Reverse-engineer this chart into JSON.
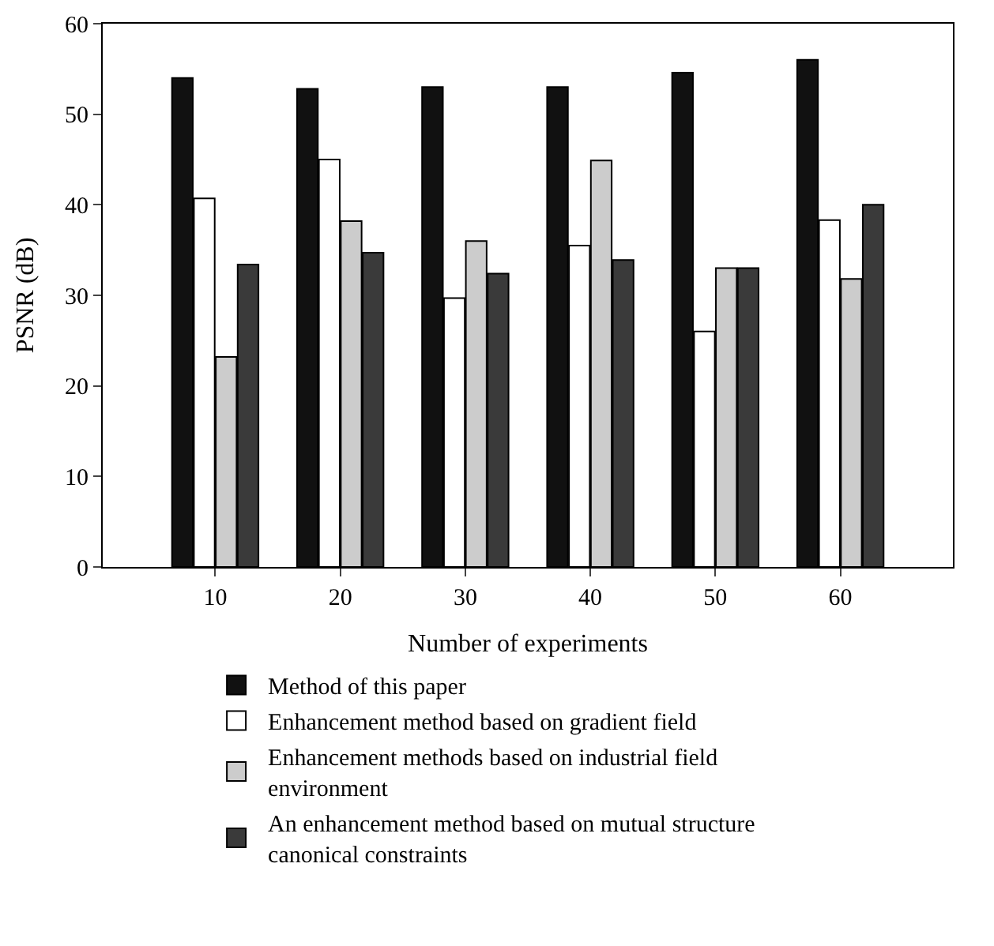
{
  "chart_data": {
    "type": "bar",
    "xlabel": "Number of experiments",
    "ylabel": "PSNR (dB)",
    "categories": [
      "10",
      "20",
      "30",
      "40",
      "50",
      "60"
    ],
    "ylim": [
      0,
      60
    ],
    "yticks": [
      0,
      10,
      20,
      30,
      40,
      50,
      60
    ],
    "legend": "bottom",
    "series": [
      {
        "name": "Method of this paper",
        "color": "#111111",
        "values": [
          54,
          52.8,
          53,
          53,
          54.6,
          56
        ]
      },
      {
        "name": "Enhancement method based on gradient field",
        "color": "#ffffff",
        "values": [
          40.7,
          45,
          29.7,
          35.5,
          26,
          38.3
        ]
      },
      {
        "name": "Enhancement methods based on industrial field environment",
        "color": "#cccccc",
        "values": [
          23.2,
          38.2,
          36,
          44.9,
          33,
          31.8
        ]
      },
      {
        "name": "An enhancement method based on mutual structure canonical constraints",
        "color": "#3a3a3a",
        "values": [
          33.4,
          34.7,
          32.4,
          33.9,
          33,
          40
        ]
      }
    ]
  }
}
